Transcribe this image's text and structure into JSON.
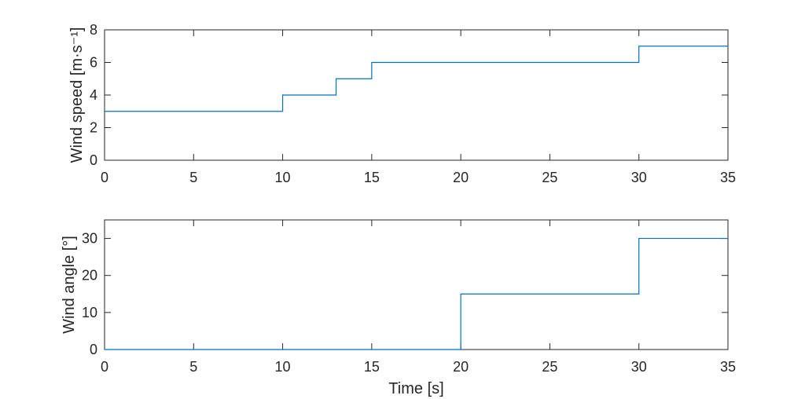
{
  "colors": {
    "series": "#0072BD",
    "axes": "#262626",
    "background": "#ffffff"
  },
  "chart_data": [
    {
      "type": "line",
      "step": "post",
      "xlabel": "",
      "ylabel": "Wind speed [m·s⁻¹]",
      "xlim": [
        0,
        35
      ],
      "ylim": [
        0,
        8
      ],
      "xticks": [
        0,
        5,
        10,
        15,
        20,
        25,
        30,
        35
      ],
      "yticks": [
        0,
        2,
        4,
        6,
        8
      ],
      "grid": false,
      "series": [
        {
          "x": [
            0,
            10,
            13,
            15,
            30,
            35
          ],
          "y": [
            3,
            4,
            5,
            6,
            7,
            7
          ]
        }
      ]
    },
    {
      "type": "line",
      "step": "post",
      "xlabel": "Time [s]",
      "ylabel": "Wind angle [°]",
      "xlim": [
        0,
        35
      ],
      "ylim": [
        0,
        35
      ],
      "xticks": [
        0,
        5,
        10,
        15,
        20,
        25,
        30,
        35
      ],
      "yticks": [
        0,
        10,
        20,
        30
      ],
      "grid": false,
      "series": [
        {
          "x": [
            0,
            20,
            30,
            35
          ],
          "y": [
            0,
            15,
            30,
            30
          ]
        }
      ]
    }
  ]
}
